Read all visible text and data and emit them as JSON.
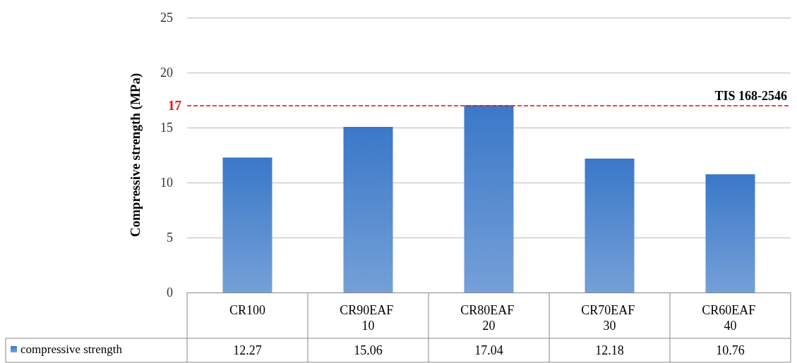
{
  "chart_data": {
    "type": "bar",
    "ylabel": "Compressive strength (MPa)",
    "categories": [
      "CR100",
      "CR90EAF 10",
      "CR80EAF 20",
      "CR70EAF 30",
      "CR60EAF 40"
    ],
    "series": [
      {
        "name": "compressive strength",
        "color": "#3a78c8",
        "values": [
          12.27,
          15.06,
          17.04,
          12.18,
          10.76
        ]
      }
    ],
    "ylim": [
      0,
      25
    ],
    "yticks": [
      0,
      5,
      10,
      15,
      20,
      25
    ],
    "grid": "y",
    "legend": "bottom left",
    "data_labels": true,
    "ref_lines": [
      {
        "axis": "y",
        "value": 17,
        "label": "TIS 168-2546",
        "color": "#ff0000",
        "line_style": "dashed"
      }
    ],
    "annotations": [
      "17"
    ]
  }
}
